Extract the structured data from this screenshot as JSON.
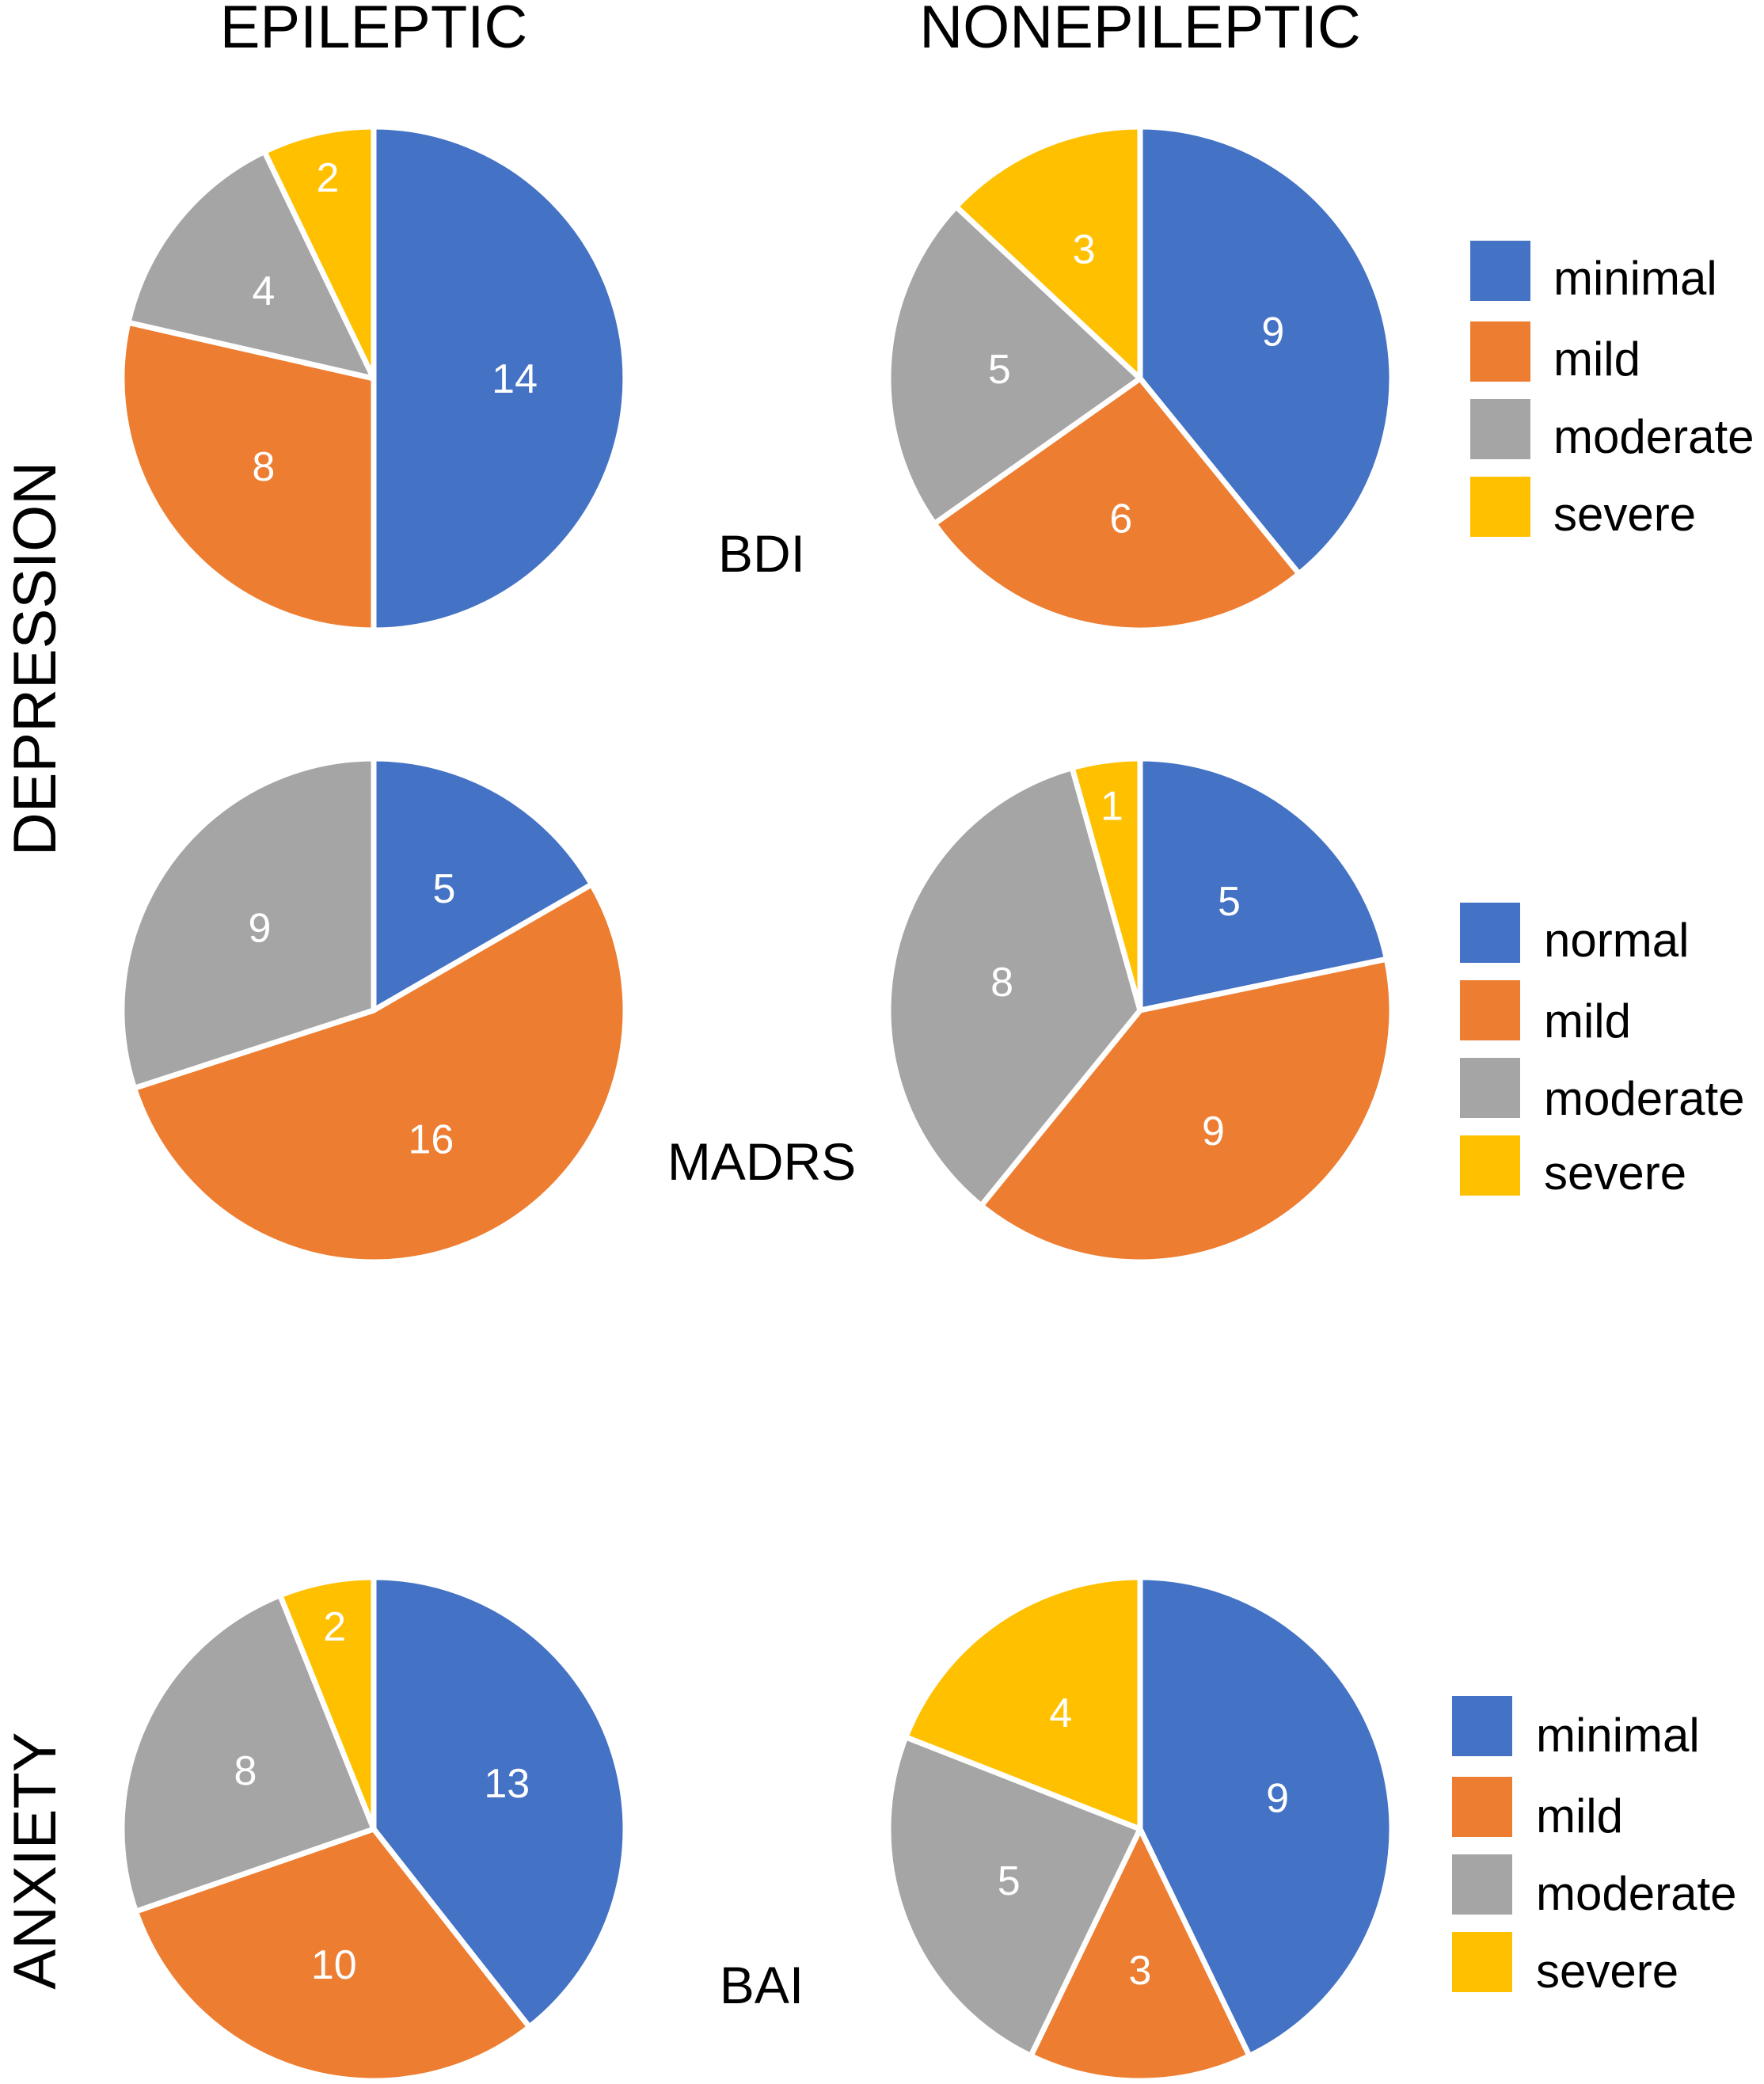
{
  "headers": {
    "epileptic": "EPILEPTIC",
    "nonepileptic": "NONEPILEPTIC"
  },
  "side_labels": {
    "depression": "DEPRESSION",
    "anxiety": "ANXIETY"
  },
  "colors": {
    "blue": "#4472C4",
    "orange": "#ED7D31",
    "gray": "#A5A5A5",
    "yellow": "#FFC000"
  },
  "legends": {
    "bdi": [
      "minimal",
      "mild",
      "moderate",
      "severe"
    ],
    "madrs": [
      "normal",
      "mild",
      "moderate",
      "severe"
    ],
    "bai": [
      "minimal",
      "mild",
      "moderate",
      "severe"
    ]
  },
  "chart_data": [
    {
      "type": "pie",
      "scale": "BDI",
      "group": "EPILEPTIC",
      "categories": [
        "minimal",
        "mild",
        "moderate",
        "severe"
      ],
      "values": [
        14,
        8,
        4,
        2
      ]
    },
    {
      "type": "pie",
      "scale": "BDI",
      "group": "NONEPILEPTIC",
      "categories": [
        "minimal",
        "mild",
        "moderate",
        "severe"
      ],
      "values": [
        9,
        6,
        5,
        3
      ]
    },
    {
      "type": "pie",
      "scale": "MADRS",
      "group": "EPILEPTIC",
      "categories": [
        "normal",
        "mild",
        "moderate",
        "severe"
      ],
      "values": [
        5,
        16,
        9,
        0
      ]
    },
    {
      "type": "pie",
      "scale": "MADRS",
      "group": "NONEPILEPTIC",
      "categories": [
        "normal",
        "mild",
        "moderate",
        "severe"
      ],
      "values": [
        5,
        9,
        8,
        1
      ]
    },
    {
      "type": "pie",
      "scale": "BAI",
      "group": "EPILEPTIC",
      "categories": [
        "minimal",
        "mild",
        "moderate",
        "severe"
      ],
      "values": [
        13,
        10,
        8,
        2
      ]
    },
    {
      "type": "pie",
      "scale": "BAI",
      "group": "NONEPILEPTIC",
      "categories": [
        "minimal",
        "mild",
        "moderate",
        "severe"
      ],
      "values": [
        9,
        3,
        5,
        4
      ]
    }
  ]
}
